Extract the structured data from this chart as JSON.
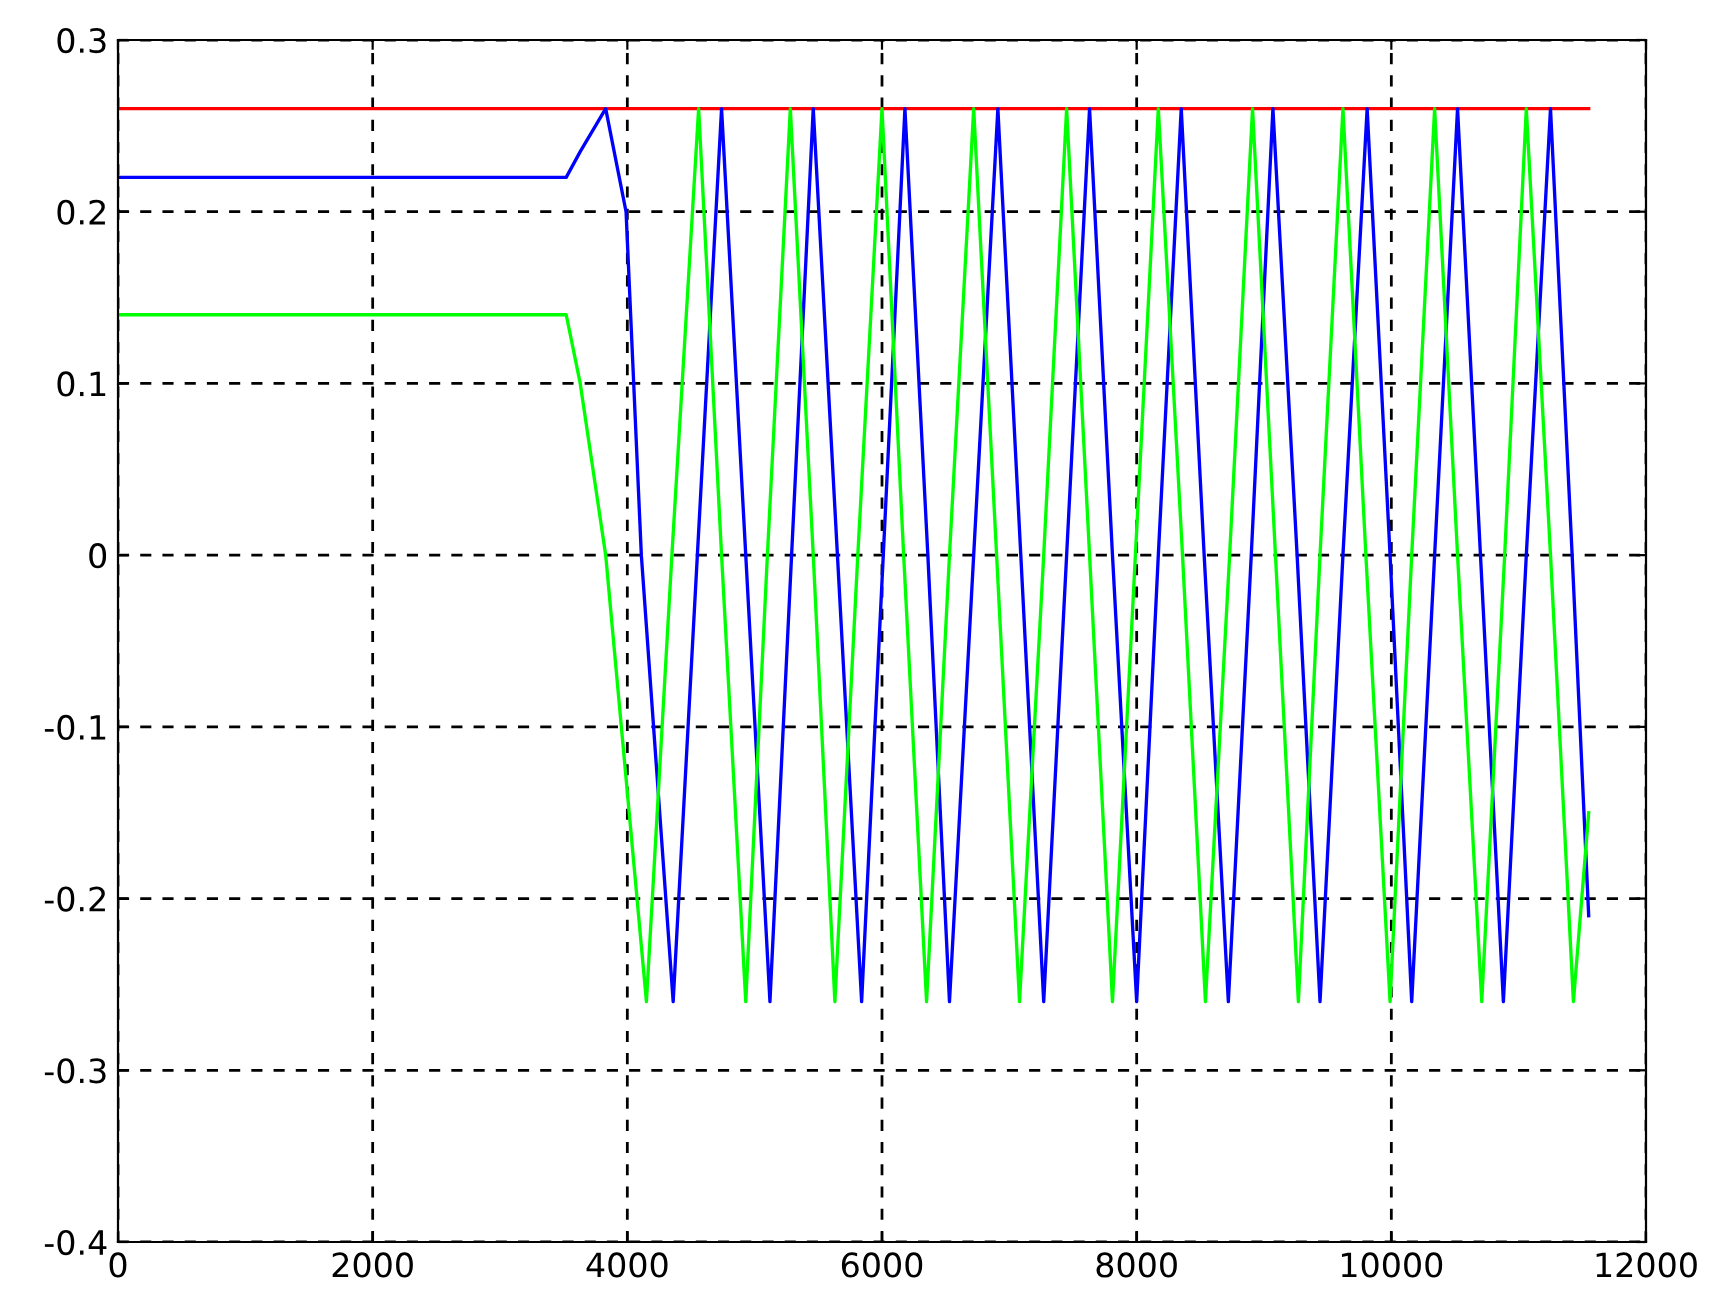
{
  "chart_data": {
    "type": "line",
    "xlim": [
      0,
      12000
    ],
    "ylim": [
      -0.4,
      0.3
    ],
    "xticks": [
      0,
      2000,
      4000,
      6000,
      8000,
      10000,
      12000
    ],
    "yticks": [
      {
        "value": -0.4,
        "label": "-0.4"
      },
      {
        "value": -0.3,
        "label": "-0.3"
      },
      {
        "value": -0.2,
        "label": "-0.2"
      },
      {
        "value": -0.1,
        "label": "-0.1"
      },
      {
        "value": 0,
        "label": "0"
      },
      {
        "value": 0.1,
        "label": "0.1"
      },
      {
        "value": 0.2,
        "label": "0.2"
      },
      {
        "value": 0.3,
        "label": "0.3"
      }
    ],
    "grid": true,
    "marker": "none",
    "line_style": "solid",
    "series": [
      {
        "color": "#ff0000",
        "x": [
          0,
          11550
        ],
        "values": [
          0.26,
          0.26
        ]
      },
      {
        "color": "#0000ff",
        "x": [
          0,
          3520,
          3630,
          3830,
          3990,
          4110,
          4360,
          4550,
          4740,
          4930,
          5120,
          5290,
          5460,
          5650,
          5840,
          6010,
          6180,
          6360,
          6530,
          6720,
          6910,
          7090,
          7270,
          7450,
          7630,
          7810,
          8000,
          8170,
          8350,
          8530,
          8720,
          8900,
          9070,
          9260,
          9440,
          9620,
          9810,
          9990,
          10160,
          10340,
          10520,
          10700,
          10880,
          11060,
          11250,
          11420,
          11550
        ],
        "values": [
          0.22,
          0.22,
          0.235,
          0.26,
          0.2,
          0,
          -0.26,
          0,
          0.26,
          0,
          -0.26,
          0,
          0.26,
          0,
          -0.26,
          0,
          0.26,
          0,
          -0.26,
          0,
          0.26,
          0,
          -0.26,
          0,
          0.26,
          0,
          -0.26,
          0,
          0.26,
          0,
          -0.26,
          0,
          0.26,
          0,
          -0.26,
          0,
          0.26,
          0,
          -0.26,
          0,
          0.26,
          0,
          -0.26,
          0,
          0.26,
          0,
          -0.21
        ]
      },
      {
        "color": "#00ff00",
        "x": [
          0,
          3520,
          3630,
          3830,
          4150,
          4350,
          4560,
          4740,
          4930,
          5100,
          5280,
          5460,
          5630,
          5810,
          6000,
          6170,
          6350,
          6530,
          6720,
          6900,
          7080,
          7270,
          7450,
          7630,
          7810,
          7990,
          8170,
          8360,
          8540,
          8730,
          8910,
          9090,
          9270,
          9440,
          9620,
          9800,
          9990,
          10160,
          10340,
          10520,
          10710,
          10890,
          11060,
          11250,
          11430,
          11550
        ],
        "values": [
          0.14,
          0.14,
          0.1,
          0,
          -0.26,
          0,
          0.26,
          0,
          -0.26,
          0,
          0.26,
          0,
          -0.26,
          0,
          0.26,
          0,
          -0.26,
          0,
          0.26,
          0,
          -0.26,
          0,
          0.26,
          0,
          -0.26,
          0,
          0.26,
          0,
          -0.26,
          0,
          0.26,
          0,
          -0.26,
          0,
          0.26,
          0,
          -0.26,
          0,
          0.26,
          0,
          -0.26,
          0,
          0.26,
          0,
          -0.26,
          -0.15
        ]
      }
    ]
  }
}
